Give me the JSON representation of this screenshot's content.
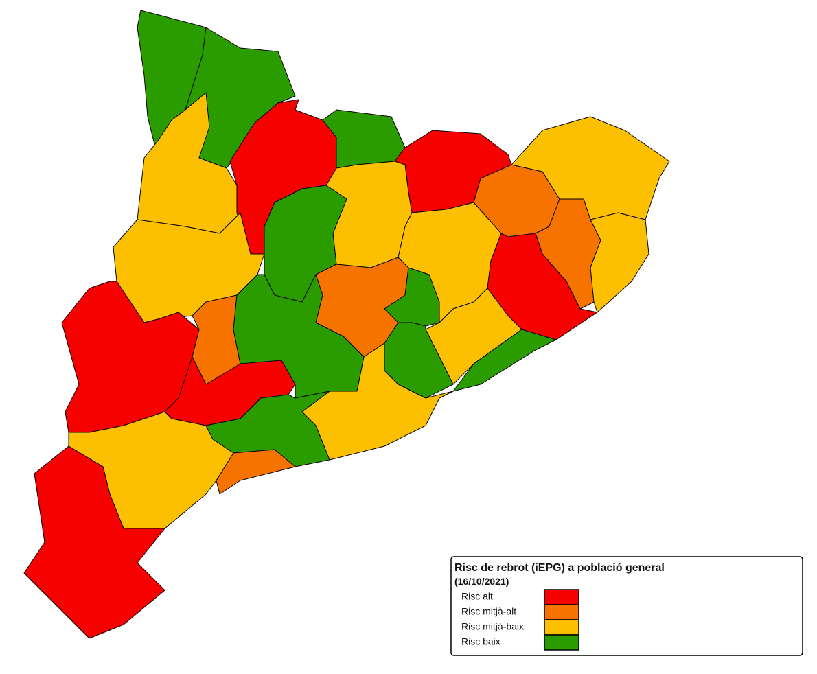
{
  "legend": {
    "title": "Risc de rebrot (iEPG) a població general",
    "date": "(16/10/2021)",
    "items": [
      {
        "label": "Risc alt",
        "color": "#f70000"
      },
      {
        "label": "Risc mitjà-alt",
        "color": "#f77300"
      },
      {
        "label": "Risc mitjà-baix",
        "color": "#fcc000"
      },
      {
        "label": "Risc baix",
        "color": "#2a9c00"
      }
    ]
  }
}
